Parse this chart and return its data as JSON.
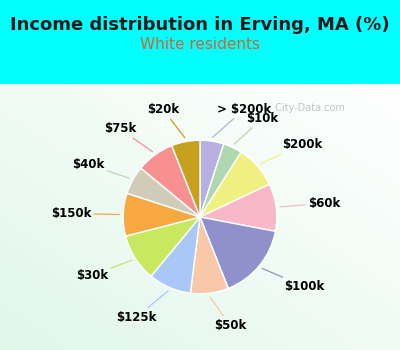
{
  "title": "Income distribution in Erving, MA (%)",
  "subtitle": "White residents",
  "bg_cyan": "#00FFFF",
  "bg_chart_color": "#e8f5ef",
  "labels": [
    "> $200k",
    "$10k",
    "$200k",
    "$60k",
    "$100k",
    "$50k",
    "$125k",
    "$30k",
    "$150k",
    "$40k",
    "$75k",
    "$20k"
  ],
  "values": [
    5,
    4,
    9,
    10,
    16,
    8,
    9,
    10,
    9,
    6,
    8,
    6
  ],
  "colors": [
    "#b8b0e0",
    "#b0d8b0",
    "#f0f080",
    "#f8b8c8",
    "#9090cc",
    "#f8c8a8",
    "#a8c8f8",
    "#c8e860",
    "#f8a840",
    "#d0ccb8",
    "#f89090",
    "#c8a020"
  ],
  "label_fontsize": 8.5,
  "title_fontsize": 13,
  "subtitle_fontsize": 11,
  "subtitle_color": "#cc6633",
  "watermark": " City-Data.com"
}
